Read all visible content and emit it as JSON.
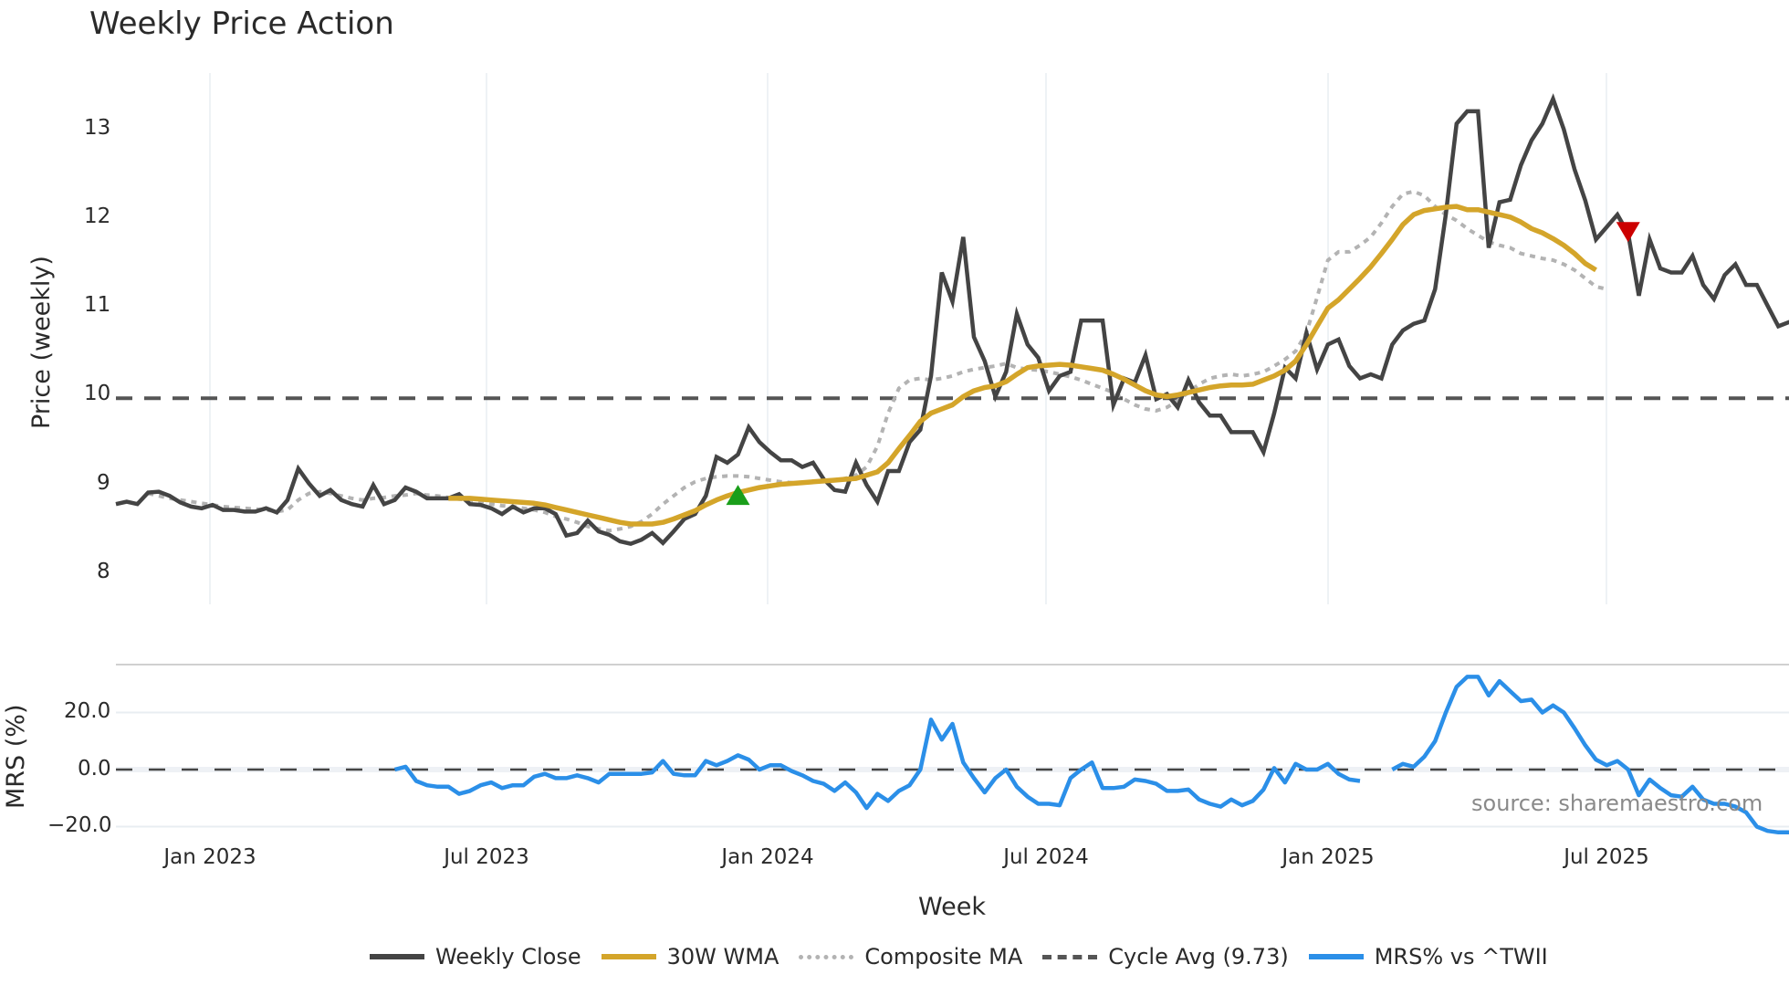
{
  "title": "Weekly Price Action",
  "price_axis": {
    "label": "Price (weekly)",
    "ticks": [
      "13",
      "12",
      "11",
      "10",
      "9",
      "8"
    ]
  },
  "mrs_axis": {
    "label": "MRS (%)",
    "ticks": [
      "20.0",
      "0.0",
      "−20.0"
    ]
  },
  "x_axis": {
    "label": "Week",
    "ticks": [
      "Jan 2023",
      "Jul 2023",
      "Jan 2024",
      "Jul 2024",
      "Jan 2025",
      "Jul 2025"
    ]
  },
  "source": "source: sharemaestro.com",
  "legend": {
    "weekly_close": "Weekly Close",
    "wma": "30W WMA",
    "composite": "Composite MA",
    "cycle": "Cycle Avg (9.73)",
    "mrs": "MRS% vs ^TWII"
  },
  "colors": {
    "weekly_close": "#444444",
    "wma": "#d4a52a",
    "composite": "#b3b3b3",
    "cycle": "#555555",
    "mrs": "#2b8fe8",
    "buy_marker": "#1a9e1a",
    "sell_marker": "#cc0000",
    "grid": "#e8edf2"
  },
  "chart_data": [
    {
      "type": "line",
      "title": "Weekly Price Action",
      "xlabel": "Week",
      "ylabel": "Price (weekly)",
      "ylim": [
        7.6,
        13.6
      ],
      "x_ticks": [
        "Jan 2023",
        "Jul 2023",
        "Jan 2024",
        "Jul 2024",
        "Jan 2025",
        "Jul 2025"
      ],
      "x_start": "2022-11 (weekly)",
      "grid": "vertical",
      "legend_position": "bottom",
      "series": [
        {
          "name": "Weekly Close",
          "start_index": 0,
          "values": [
            8.45,
            8.48,
            8.45,
            8.59,
            8.6,
            8.55,
            8.47,
            8.42,
            8.4,
            8.44,
            8.38,
            8.38,
            8.36,
            8.36,
            8.4,
            8.35,
            8.5,
            8.88,
            8.7,
            8.55,
            8.62,
            8.5,
            8.45,
            8.42,
            8.68,
            8.45,
            8.5,
            8.65,
            8.6,
            8.52,
            8.52,
            8.52,
            8.57,
            8.45,
            8.44,
            8.4,
            8.33,
            8.42,
            8.35,
            8.4,
            8.4,
            8.33,
            8.07,
            8.1,
            8.25,
            8.12,
            8.08,
            8.0,
            7.97,
            8.02,
            8.1,
            7.98,
            8.12,
            8.27,
            8.33,
            8.55,
            9.02,
            8.95,
            9.05,
            9.38,
            9.2,
            9.08,
            8.98,
            8.98,
            8.9,
            8.95,
            8.75,
            8.62,
            8.6,
            8.95,
            8.68,
            8.48,
            8.85,
            8.85,
            9.2,
            9.35,
            10.0,
            11.25,
            10.9,
            11.68,
            10.47,
            10.18,
            9.75,
            10.05,
            10.75,
            10.38,
            10.22,
            9.82,
            10.0,
            10.05,
            10.67,
            10.67,
            10.67,
            9.65,
            9.97,
            9.92,
            10.25,
            9.72,
            9.78,
            9.62,
            9.95,
            9.68,
            9.52,
            9.52,
            9.32,
            9.32,
            9.32,
            9.08,
            9.55,
            10.1,
            9.97,
            10.52,
            10.08,
            10.38,
            10.44,
            10.12,
            9.97,
            10.02,
            9.97,
            10.38,
            10.55,
            10.63,
            10.67,
            11.05,
            11.95,
            13.05,
            13.2,
            13.2,
            11.55,
            12.1,
            12.13,
            12.55,
            12.85,
            13.05,
            13.35,
            12.98,
            12.5,
            12.12,
            11.65,
            11.8,
            11.95,
            11.72,
            10.97,
            11.65,
            11.3,
            11.25,
            11.25,
            11.45,
            11.1,
            10.93,
            11.22,
            11.35,
            11.1,
            11.1,
            10.85,
            10.6,
            10.65,
            10.6
          ]
        },
        {
          "name": "30W WMA",
          "start_index": 31,
          "values": [
            8.52,
            8.52,
            8.52,
            8.51,
            8.5,
            8.49,
            8.48,
            8.47,
            8.46,
            8.44,
            8.41,
            8.38,
            8.35,
            8.32,
            8.29,
            8.26,
            8.23,
            8.21,
            8.21,
            8.21,
            8.23,
            8.27,
            8.32,
            8.37,
            8.44,
            8.5,
            8.55,
            8.59,
            8.62,
            8.65,
            8.67,
            8.69,
            8.7,
            8.71,
            8.72,
            8.73,
            8.74,
            8.75,
            8.76,
            8.8,
            8.84,
            8.95,
            9.12,
            9.28,
            9.45,
            9.55,
            9.6,
            9.65,
            9.75,
            9.82,
            9.86,
            9.88,
            9.93,
            10.02,
            10.1,
            10.12,
            10.13,
            10.14,
            10.13,
            10.11,
            10.09,
            10.07,
            10.02,
            9.96,
            9.89,
            9.82,
            9.77,
            9.75,
            9.77,
            9.8,
            9.83,
            9.86,
            9.88,
            9.89,
            9.89,
            9.9,
            9.95,
            10.0,
            10.07,
            10.18,
            10.38,
            10.6,
            10.82,
            10.92,
            11.05,
            11.18,
            11.32,
            11.48,
            11.65,
            11.83,
            11.95,
            12.0,
            12.02,
            12.04,
            12.05,
            12.01,
            12.01,
            11.98,
            11.95,
            11.92,
            11.86,
            11.78,
            11.73,
            11.66,
            11.58,
            11.48,
            11.36,
            11.28
          ]
        },
        {
          "name": "Composite MA",
          "start_index": 3,
          "values": [
            8.58,
            8.55,
            8.52,
            8.5,
            8.48,
            8.46,
            8.44,
            8.42,
            8.41,
            8.4,
            8.39,
            8.38,
            8.36,
            8.38,
            8.5,
            8.58,
            8.6,
            8.58,
            8.55,
            8.52,
            8.5,
            8.52,
            8.53,
            8.55,
            8.56,
            8.58,
            8.56,
            8.55,
            8.53,
            8.51,
            8.5,
            8.48,
            8.45,
            8.43,
            8.42,
            8.4,
            8.38,
            8.35,
            8.3,
            8.27,
            8.23,
            8.18,
            8.15,
            8.13,
            8.15,
            8.18,
            8.24,
            8.33,
            8.45,
            8.55,
            8.65,
            8.72,
            8.76,
            8.78,
            8.79,
            8.79,
            8.78,
            8.76,
            8.74,
            8.72,
            8.71,
            8.71,
            8.72,
            8.73,
            8.74,
            8.76,
            8.8,
            8.9,
            9.15,
            9.55,
            9.85,
            9.95,
            9.97,
            9.95,
            9.97,
            10.0,
            10.05,
            10.08,
            10.1,
            10.12,
            10.15,
            10.1,
            10.08,
            10.07,
            10.05,
            10.02,
            9.99,
            9.95,
            9.9,
            9.85,
            9.8,
            9.72,
            9.65,
            9.6,
            9.58,
            9.62,
            9.7,
            9.8,
            9.9,
            9.97,
            10.0,
            10.02,
            10.0,
            10.02,
            10.05,
            10.12,
            10.2,
            10.3,
            10.52,
            10.95,
            11.4,
            11.5,
            11.5,
            11.58,
            11.68,
            11.85,
            12.05,
            12.2,
            12.23,
            12.18,
            12.05,
            11.95,
            11.88,
            11.78,
            11.7,
            11.62,
            11.58,
            11.55,
            11.48,
            11.45,
            11.42,
            11.4,
            11.35,
            11.28,
            11.18,
            11.08,
            11.05
          ]
        },
        {
          "name": "Cycle Avg (9.73)",
          "constant": 9.73
        }
      ],
      "markers": [
        {
          "type": "buy",
          "shape": "triangle-up",
          "index": 58,
          "value": 8.55
        },
        {
          "type": "sell",
          "shape": "triangle-down",
          "index": 141,
          "value": 11.75
        }
      ]
    },
    {
      "type": "line",
      "ylabel": "MRS (%)",
      "ylim": [
        -26,
        38
      ],
      "y_ticks": [
        20.0,
        0.0,
        -20.0
      ],
      "series": [
        {
          "name": "MRS% vs ^TWII",
          "start_index": 26,
          "values": [
            0,
            1,
            -4,
            -5.5,
            -6,
            -6,
            -8.5,
            -7.5,
            -5.5,
            -4.5,
            -6.5,
            -5.5,
            -5.5,
            -2.5,
            -1.5,
            -3,
            -3,
            -2,
            -3,
            -4.5,
            -1.5,
            -1.5,
            -1.5,
            -1.5,
            -1,
            3,
            -1.5,
            -2,
            -2,
            3,
            1.5,
            3,
            5,
            3.5,
            0,
            1.5,
            1.5,
            -0.5,
            -2,
            -4,
            -5,
            -7.5,
            -4.5,
            -8,
            -13.5,
            -8.5,
            -11,
            -7.5,
            -5.5,
            0,
            17.5,
            10.5,
            16,
            2.5,
            -3,
            -8,
            -3,
            0,
            -6,
            -9.5,
            -12,
            -12,
            -12.5,
            -3,
            0,
            2.5,
            -6.5,
            -6.5,
            -6,
            -3.5,
            -4,
            -5,
            -7.5,
            -7.5,
            -7,
            -10.5,
            -12,
            -13,
            -10.5,
            -12.5,
            -11,
            -7,
            0.5,
            -4.5,
            2,
            0,
            0,
            2,
            -1.5,
            -3.5,
            -4,
            null,
            null,
            0,
            2,
            1,
            4.5,
            10,
            20,
            29,
            32.5,
            32.5,
            26,
            31,
            27.5,
            24,
            24.5,
            20,
            22.5,
            20,
            14.5,
            8.5,
            3.5,
            1.5,
            3,
            0,
            -9,
            -3.5,
            -6.5,
            -9,
            -9.5,
            -6,
            -10.5,
            -12,
            -12,
            -13,
            -15,
            -20,
            -21.5,
            -22,
            -22
          ]
        },
        {
          "name": "zero line",
          "constant": 0
        }
      ]
    }
  ]
}
